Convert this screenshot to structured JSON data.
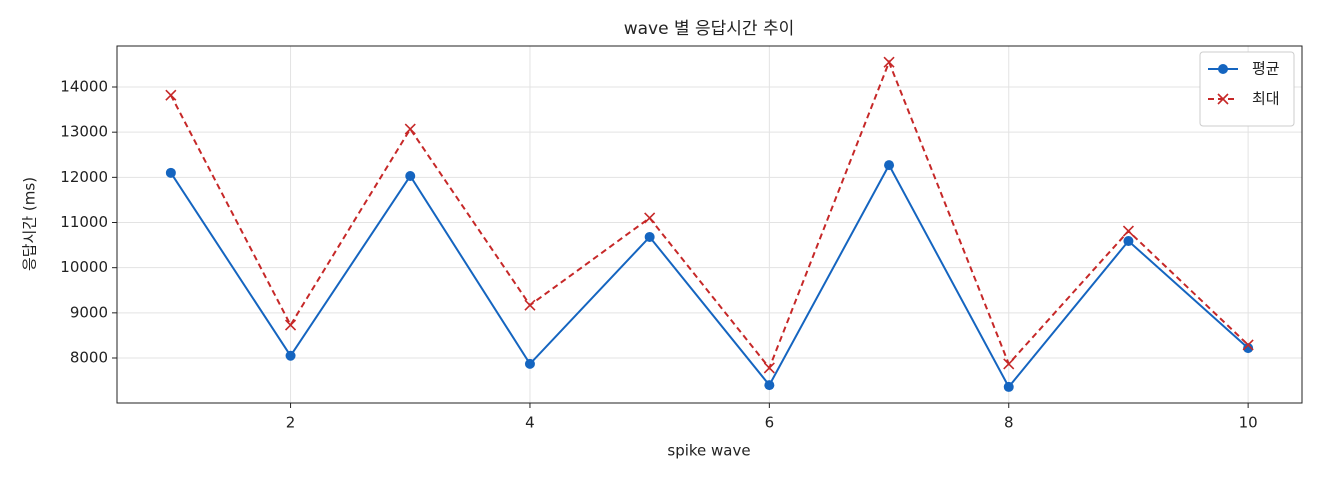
{
  "chart_data": {
    "type": "line",
    "title": "wave 별 응답시간 추이",
    "x_label": "spike wave",
    "y_label": "응답시간 (ms)",
    "x": [
      1,
      2,
      3,
      4,
      5,
      6,
      7,
      8,
      9,
      10
    ],
    "series": [
      {
        "name": "평균",
        "color": "#1565c0",
        "marker": "o",
        "dashed": false,
        "values": [
          12100,
          8050,
          12030,
          7870,
          10680,
          7400,
          12270,
          7360,
          10590,
          8220
        ]
      },
      {
        "name": "최대",
        "color": "#c62828",
        "marker": "x",
        "dashed": true,
        "values": [
          13820,
          8730,
          13070,
          9170,
          11100,
          7780,
          14550,
          7870,
          10810,
          8290
        ]
      }
    ],
    "xlim": [
      0.55,
      10.45
    ],
    "xticks": [
      2,
      4,
      6,
      8,
      10
    ],
    "ylim": [
      7004,
      14908
    ],
    "yticks": [
      8000,
      9000,
      10000,
      11000,
      12000,
      13000,
      14000
    ],
    "grid": true,
    "legend": "upper right"
  }
}
